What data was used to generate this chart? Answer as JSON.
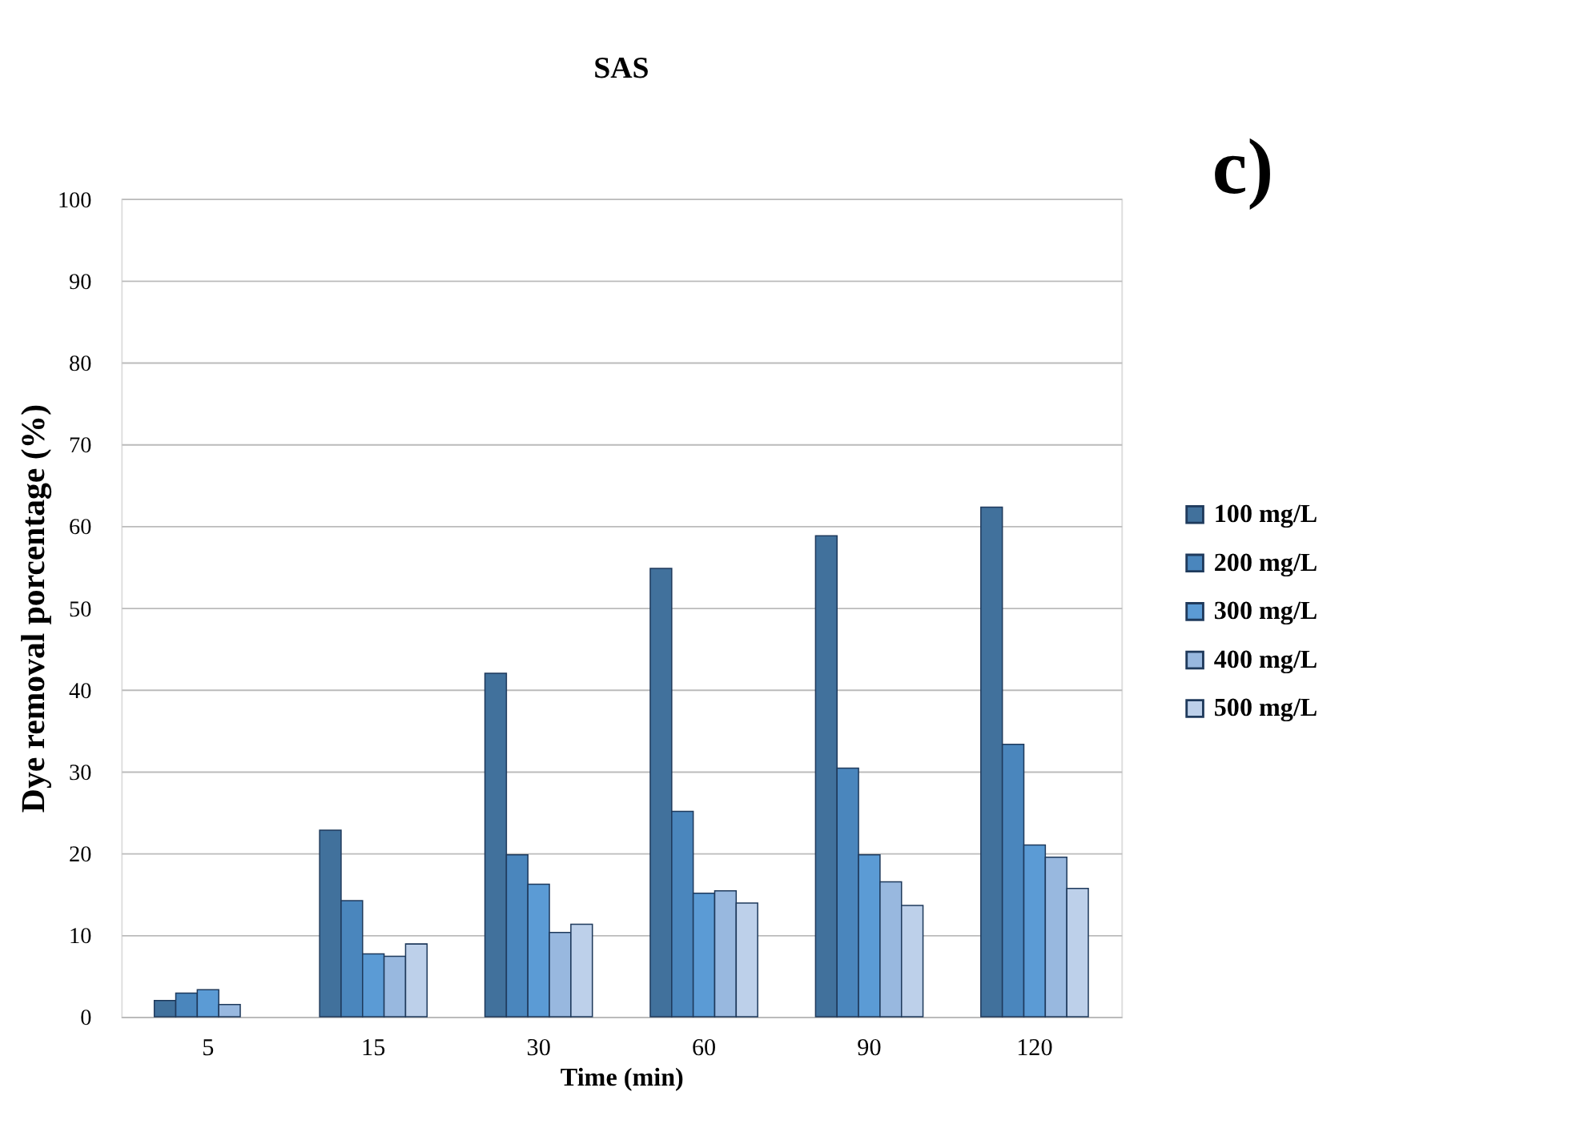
{
  "chart_data": {
    "type": "bar",
    "title": "SAS",
    "xlabel": "Time (min)",
    "ylabel": "Dye removal porcentage (%)",
    "categories": [
      "5",
      "15",
      "30",
      "60",
      "90",
      "120"
    ],
    "series": [
      {
        "name": "100 mg/L",
        "color": "#41719c",
        "values": [
          2.0,
          22.8,
          42.0,
          54.8,
          58.8,
          62.3
        ]
      },
      {
        "name": "200 mg/L",
        "color": "#4a86bd",
        "values": [
          2.9,
          14.2,
          19.8,
          25.1,
          30.4,
          33.3
        ]
      },
      {
        "name": "300 mg/L",
        "color": "#5b9bd5",
        "values": [
          3.3,
          7.7,
          16.2,
          15.1,
          19.8,
          21.0
        ]
      },
      {
        "name": "400 mg/L",
        "color": "#98b8df",
        "values": [
          1.5,
          7.4,
          10.3,
          15.4,
          16.5,
          19.5
        ]
      },
      {
        "name": "500 mg/L",
        "color": "#bdd0ea",
        "values": [
          null,
          8.9,
          11.3,
          13.9,
          13.6,
          15.7
        ]
      }
    ],
    "ylim": [
      0,
      100
    ],
    "yticks": [
      0,
      10,
      20,
      30,
      40,
      50,
      60,
      70,
      80,
      90,
      100
    ],
    "grid": "y",
    "legend": "right",
    "annotations": [
      "c)"
    ]
  }
}
